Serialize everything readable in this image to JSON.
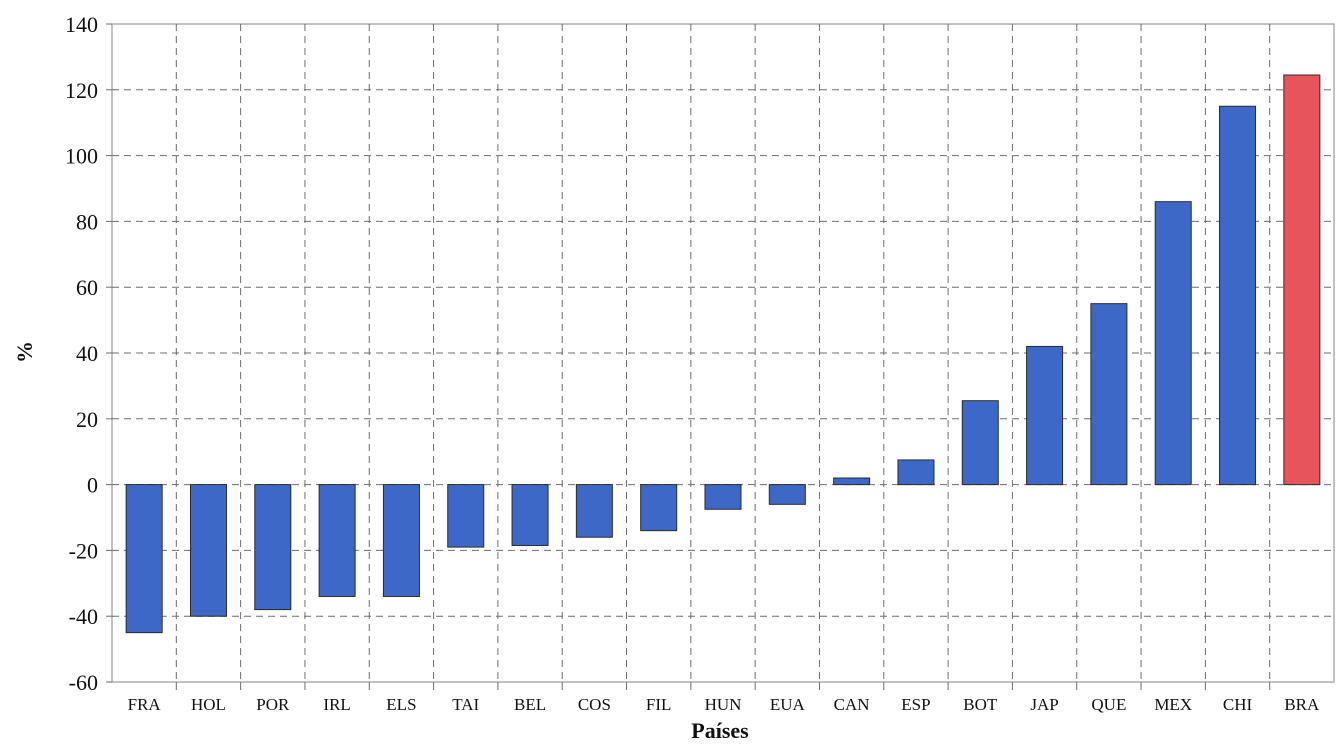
{
  "chart_data": {
    "type": "bar",
    "categories": [
      "FRA",
      "HOL",
      "POR",
      "IRL",
      "ELS",
      "TAI",
      "BEL",
      "COS",
      "FIL",
      "HUN",
      "EUA",
      "CAN",
      "ESP",
      "BOT",
      "JAP",
      "QUE",
      "MEX",
      "CHI",
      "BRA"
    ],
    "values": [
      -45,
      -40,
      -38,
      -34,
      -34,
      -19,
      -18.5,
      -16,
      -14,
      -7.5,
      -6,
      2,
      7.5,
      25.5,
      42,
      55,
      86,
      115,
      124.5
    ],
    "title": "",
    "xlabel": "Países",
    "ylabel": "%",
    "ylim": [
      -60,
      140
    ],
    "yticks": [
      -60,
      -40,
      -20,
      0,
      20,
      40,
      60,
      80,
      100,
      120,
      140
    ],
    "grid": true,
    "bar_color": "#3e68c8",
    "highlight_color": "#e8545c",
    "highlight_category": "BRA"
  }
}
